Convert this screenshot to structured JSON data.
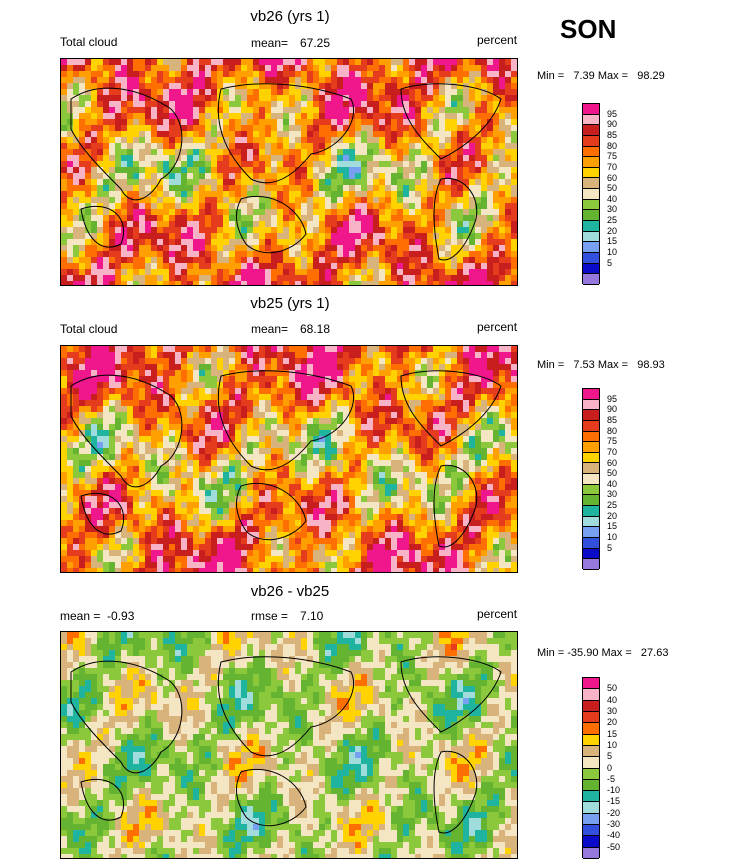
{
  "season": "SON",
  "panels": [
    {
      "title": "vb26 (yrs 1)",
      "left_label": "Total cloud",
      "mean_label": "mean=",
      "mean_value": "67.25",
      "units": "percent",
      "minmax": "Min =   7.39 Max =   98.29",
      "levels": [
        "95",
        "90",
        "85",
        "80",
        "75",
        "70",
        "60",
        "50",
        "40",
        "30",
        "25",
        "20",
        "15",
        "10",
        "5"
      ]
    },
    {
      "title": "vb25 (yrs 1)",
      "left_label": "Total cloud",
      "mean_label": "mean=",
      "mean_value": "68.18",
      "units": "percent",
      "minmax": "Min =   7.53 Max =   98.93",
      "levels": [
        "95",
        "90",
        "85",
        "80",
        "75",
        "70",
        "60",
        "50",
        "40",
        "30",
        "25",
        "20",
        "15",
        "10",
        "5"
      ]
    },
    {
      "title": "vb26 - vb25",
      "left_label": "mean =  -0.93",
      "mean_label": "rmse =",
      "mean_value": "7.10",
      "units": "percent",
      "minmax": "Min = -35.90 Max =   27.63",
      "levels": [
        "50",
        "40",
        "30",
        "20",
        "15",
        "10",
        "5",
        "0",
        "-5",
        "-10",
        "-15",
        "-20",
        "-30",
        "-40",
        "-50"
      ]
    }
  ],
  "colors": {
    "abs_scale": [
      "#f0168c",
      "#f9b3c6",
      "#c81e1e",
      "#e63c1e",
      "#ff6e00",
      "#ffa000",
      "#ffd200",
      "#d8b47c",
      "#f5e6c3",
      "#8cc83c",
      "#64b432",
      "#1eb4a0",
      "#a0dcdc",
      "#78a0f0",
      "#3250dc",
      "#0a0ac8",
      "#9678dc"
    ],
    "diff_scale": [
      "#f0168c",
      "#f9b3c6",
      "#c81e1e",
      "#e63c1e",
      "#ff6e00",
      "#ffd200",
      "#d8b47c",
      "#f5e6c3",
      "#8cc83c",
      "#64b432",
      "#1eb4a0",
      "#a0dcdc",
      "#78a0f0",
      "#3250dc",
      "#0a0ac8",
      "#9678dc"
    ]
  },
  "chart_data": [
    {
      "type": "heatmap",
      "title": "vb26 (yrs 1)",
      "variable": "Total cloud",
      "units": "percent",
      "mean": 67.25,
      "min": 7.39,
      "max": 98.29,
      "contour_levels": [
        5,
        10,
        15,
        20,
        25,
        30,
        40,
        50,
        60,
        70,
        75,
        80,
        85,
        90,
        95
      ]
    },
    {
      "type": "heatmap",
      "title": "vb25 (yrs 1)",
      "variable": "Total cloud",
      "units": "percent",
      "mean": 68.18,
      "min": 7.53,
      "max": 98.93,
      "contour_levels": [
        5,
        10,
        15,
        20,
        25,
        30,
        40,
        50,
        60,
        70,
        75,
        80,
        85,
        90,
        95
      ]
    },
    {
      "type": "heatmap",
      "title": "vb26 - vb25",
      "units": "percent",
      "mean": -0.93,
      "rmse": 7.1,
      "min": -35.9,
      "max": 27.63,
      "contour_levels": [
        -50,
        -40,
        -30,
        -20,
        -15,
        -10,
        -5,
        0,
        5,
        10,
        15,
        20,
        30,
        40,
        50
      ]
    }
  ]
}
